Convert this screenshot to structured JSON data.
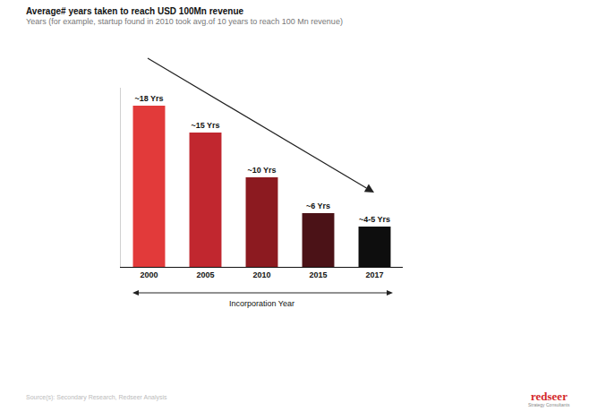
{
  "chart_data": {
    "type": "bar",
    "title": "Average# years taken to reach USD 100Mn revenue",
    "subtitle": "Years (for example, startup found in 2010 took avg.of 10 years to reach 100 Mn revenue)",
    "x_label": "Incorporation Year",
    "categories": [
      "2000",
      "2005",
      "2010",
      "2015",
      "2017"
    ],
    "values": [
      18,
      15,
      10,
      6,
      4.5
    ],
    "value_labels": [
      "~18 Yrs",
      "~15 Yrs",
      "~10 Yrs",
      "~6 Yrs",
      "~4-5 Yrs"
    ],
    "colors": [
      "#e23a3a",
      "#c1272f",
      "#8c1a20",
      "#4b1217",
      "#0e0e0e"
    ],
    "ylim": [
      0,
      20
    ],
    "yticks": [],
    "grid": false,
    "data_labels": true,
    "tick_labels": "x",
    "source": "Source(s): Secondary Research, Redseer Analysis",
    "brand": "redseer",
    "brand_tagline": "Strategy Consultants"
  }
}
